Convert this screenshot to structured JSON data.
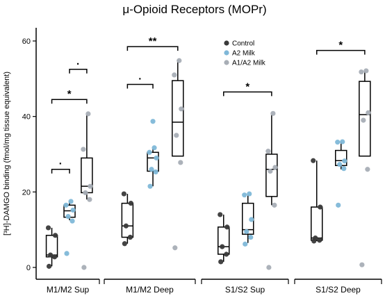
{
  "chart_data": {
    "type": "box",
    "title": "μ-Opioid Receptors (MOPr)",
    "ylabel": "[³H]-DAMGO binding (fmol/mg tissue equivalent)",
    "xlabel": "",
    "ylim": [
      -3,
      62
    ],
    "yticks": [
      0,
      20,
      40,
      60
    ],
    "grid": false,
    "legend_position": "top-right",
    "categories": [
      "M1/M2 Sup",
      "M1/M2 Deep",
      "S1/S2 Sup",
      "S1/S2 Deep"
    ],
    "series": [
      {
        "name": "Control",
        "color": "#3a3a3a",
        "boxes": [
          {
            "min": 0.3,
            "q1": 2.8,
            "median": 3.3,
            "q3": 8.5,
            "max": 10.5,
            "points": [
              0.3,
              2.8,
              3.3,
              8.5,
              10.5
            ]
          },
          {
            "min": 6.3,
            "q1": 8.0,
            "median": 11.0,
            "q3": 17.0,
            "max": 19.5,
            "points": [
              6.3,
              8.0,
              11.0,
              17.0,
              19.5
            ]
          },
          {
            "min": 1.5,
            "q1": 3.5,
            "median": 5.5,
            "q3": 10.7,
            "max": 14.0,
            "points": [
              1.5,
              3.5,
              5.5,
              10.7,
              14.0
            ]
          },
          {
            "min": 7.0,
            "q1": 7.2,
            "median": 7.8,
            "q3": 16.0,
            "max": 28.3,
            "points": [
              7.0,
              7.2,
              7.8,
              16.0,
              28.3
            ]
          }
        ]
      },
      {
        "name": "A2 Milk",
        "color": "#7fb8d8",
        "boxes": [
          {
            "min": 12.5,
            "q1": 13.3,
            "median": 15.0,
            "q3": 16.5,
            "max": 17.5,
            "points": [
              3.7,
              12.3,
              13.5,
              15.2,
              16.5,
              17.5
            ]
          },
          {
            "min": 21.5,
            "q1": 25.5,
            "median": 29.0,
            "q3": 30.5,
            "max": 31.5,
            "points": [
              21.5,
              25.3,
              26.0,
              29.0,
              30.5,
              31.7,
              38.7
            ]
          },
          {
            "min": 6.5,
            "q1": 8.8,
            "median": 10.0,
            "q3": 17.0,
            "max": 19.3,
            "points": [
              6.2,
              8.0,
              9.5,
              12.7,
              19.2,
              19.5
            ]
          },
          {
            "min": 26.0,
            "q1": 27.0,
            "median": 28.3,
            "q3": 31.0,
            "max": 33.3,
            "points": [
              16.5,
              26.2,
              27.3,
              28.2,
              33.2,
              33.3
            ]
          }
        ]
      },
      {
        "name": "A1/A2 Milk",
        "color": "#a8aeb6",
        "boxes": [
          {
            "min": 18.0,
            "q1": 19.8,
            "median": 21.5,
            "q3": 29.0,
            "max": 40.5,
            "points": [
              0.0,
              18.0,
              19.8,
              21.5,
              31.3,
              40.7
            ]
          },
          {
            "min": 29.5,
            "q1": 29.5,
            "median": 38.5,
            "q3": 49.5,
            "max": 55.0,
            "points": [
              5.2,
              27.8,
              35.0,
              42.0,
              51.0,
              54.8
            ]
          },
          {
            "min": 16.5,
            "q1": 18.8,
            "median": 26.0,
            "q3": 30.0,
            "max": 40.5,
            "points": [
              0.0,
              16.5,
              25.5,
              26.5,
              30.8,
              40.8
            ]
          },
          {
            "min": 29.5,
            "q1": 29.5,
            "median": 40.5,
            "q3": 49.3,
            "max": 52.0,
            "points": [
              0.7,
              26.0,
              39.0,
              41.0,
              51.8,
              52.1
            ]
          }
        ]
      }
    ],
    "annotations": [
      {
        "category": 0,
        "from": 0,
        "to": 1,
        "y": 26,
        "label": "·"
      },
      {
        "category": 0,
        "from": 1,
        "to": 2,
        "y": 52.5,
        "label": "·"
      },
      {
        "category": 0,
        "from": 0,
        "to": 2,
        "y": 44.5,
        "label": "*"
      },
      {
        "category": 1,
        "from": 0,
        "to": 1,
        "y": 48.5,
        "label": "·"
      },
      {
        "category": 1,
        "from": 0,
        "to": 2,
        "y": 58.5,
        "label": "**"
      },
      {
        "category": 2,
        "from": 0,
        "to": 2,
        "y": 46.5,
        "label": "*"
      },
      {
        "category": 3,
        "from": 0,
        "to": 2,
        "y": 57.5,
        "label": "*"
      }
    ]
  }
}
